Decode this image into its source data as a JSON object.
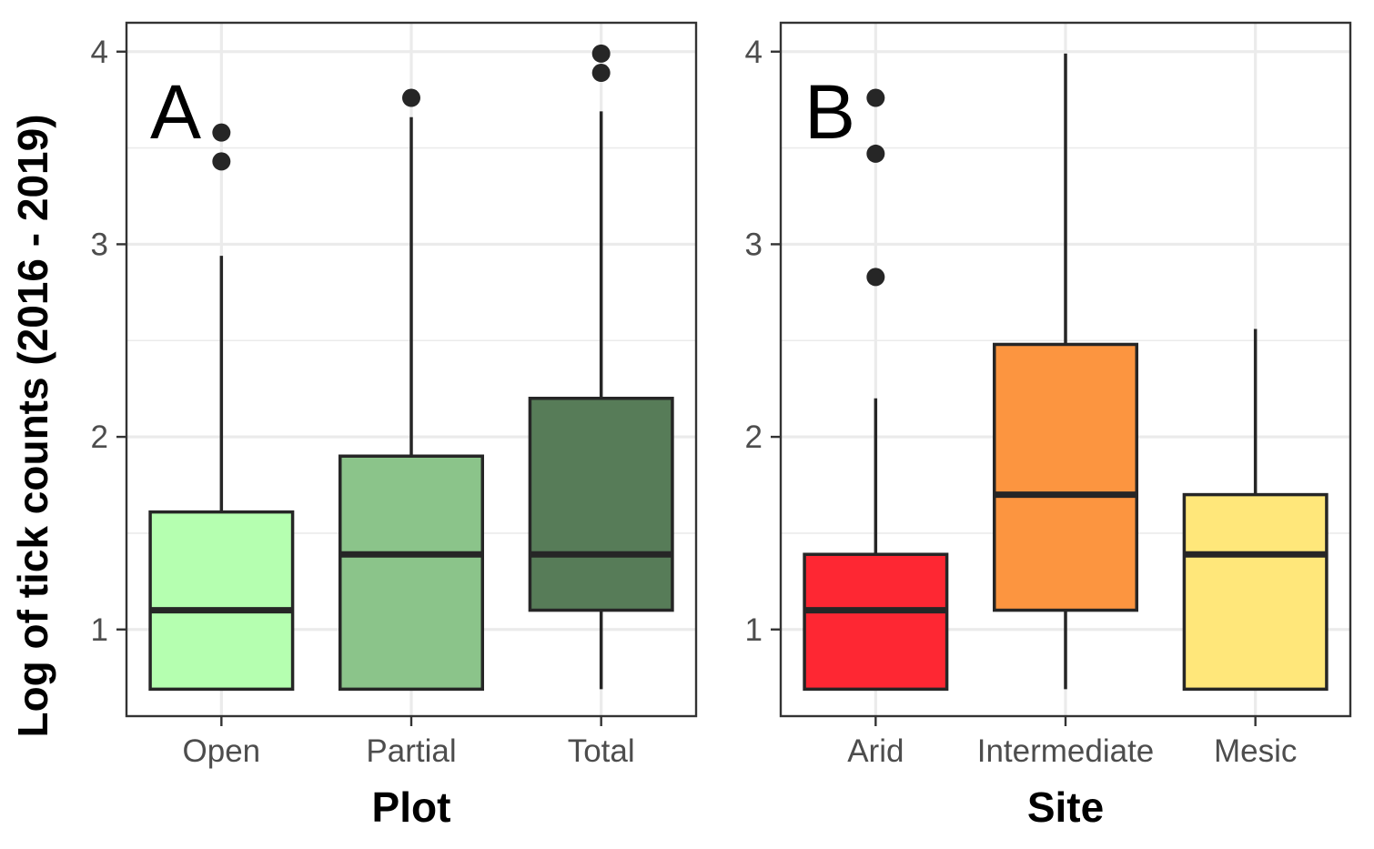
{
  "ylabel": "Log of tick counts (2016 - 2019)",
  "chart_data": [
    {
      "type": "box",
      "panel_tag": "A",
      "xlabel": "Plot",
      "ylim": [
        0.55,
        4.15
      ],
      "yticks": [
        1,
        2,
        3,
        4
      ],
      "grid": true,
      "categories": [
        "Open",
        "Partial",
        "Total"
      ],
      "boxes": [
        {
          "category": "Open",
          "lower_whisker": 0.69,
          "q1": 0.69,
          "median": 1.1,
          "q3": 1.61,
          "upper_whisker": 2.94,
          "outliers": [
            3.43,
            3.58
          ],
          "color": "#b5ffb0"
        },
        {
          "category": "Partial",
          "lower_whisker": 0.69,
          "q1": 0.69,
          "median": 1.39,
          "q3": 1.9,
          "upper_whisker": 3.66,
          "outliers": [
            3.76
          ],
          "color": "#8bc48a"
        },
        {
          "category": "Total",
          "lower_whisker": 0.69,
          "q1": 1.1,
          "median": 1.39,
          "q3": 2.2,
          "upper_whisker": 3.69,
          "outliers": [
            3.89,
            3.99
          ],
          "color": "#577c58"
        }
      ]
    },
    {
      "type": "box",
      "panel_tag": "B",
      "xlabel": "Site",
      "ylim": [
        0.55,
        4.15
      ],
      "yticks": [
        1,
        2,
        3,
        4
      ],
      "grid": true,
      "categories": [
        "Arid",
        "Intermediate",
        "Mesic"
      ],
      "boxes": [
        {
          "category": "Arid",
          "lower_whisker": 0.69,
          "q1": 0.69,
          "median": 1.1,
          "q3": 1.39,
          "upper_whisker": 2.2,
          "outliers": [
            2.83,
            3.47,
            3.76
          ],
          "color": "#fe2733"
        },
        {
          "category": "Intermediate",
          "lower_whisker": 0.69,
          "q1": 1.1,
          "median": 1.7,
          "q3": 2.48,
          "upper_whisker": 3.99,
          "outliers": [],
          "color": "#fc9540"
        },
        {
          "category": "Mesic",
          "lower_whisker": 0.69,
          "q1": 0.69,
          "median": 1.39,
          "q3": 1.7,
          "upper_whisker": 2.56,
          "outliers": [],
          "color": "#ffe77a"
        }
      ]
    }
  ]
}
